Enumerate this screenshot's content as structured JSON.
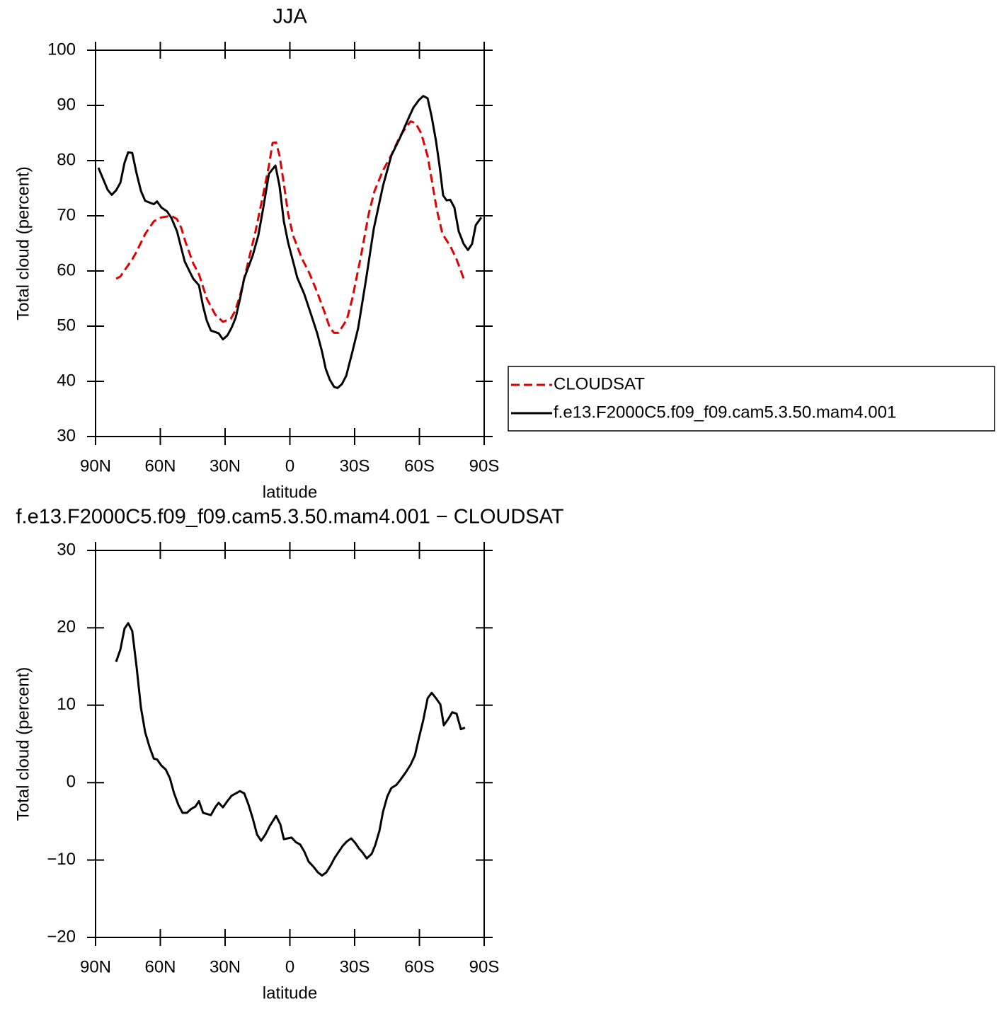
{
  "chart_data": [
    {
      "type": "line",
      "title": "JJA",
      "xlabel": "latitude",
      "ylabel": "Total cloud (percent)",
      "xlim": [
        90,
        -90
      ],
      "ylim": [
        30,
        100
      ],
      "xticks": [
        {
          "value": 90,
          "label": "90N"
        },
        {
          "value": 60,
          "label": "60N"
        },
        {
          "value": 30,
          "label": "30N"
        },
        0,
        {
          "value": -30,
          "label": "30S"
        },
        {
          "value": -60,
          "label": "60S"
        },
        {
          "value": -90,
          "label": "90S"
        }
      ],
      "yticks": [
        30,
        40,
        50,
        60,
        70,
        80,
        90,
        100
      ],
      "legend": "right",
      "series": [
        {
          "name": "CLOUDSAT",
          "color": "#e00000",
          "dash": "dashed",
          "x": [
            80.5,
            78.5,
            76.6,
            73,
            71,
            67,
            63,
            59.5,
            54.9,
            52.3,
            50.3,
            48.4,
            44.8,
            42.1,
            38.5,
            34.6,
            31,
            27.4,
            25.4,
            23.1,
            19.5,
            15.9,
            12.3,
            9.7,
            8.0,
            6.4,
            4.8,
            2.8,
            0.8,
            -1.5,
            -5.4,
            -9,
            -12.6,
            -16.2,
            -18.5,
            -20.5,
            -22.5,
            -26.4,
            -29,
            -33,
            -36.6,
            -39.2,
            -43.1,
            -47,
            -51,
            -53.6,
            -55.9,
            -58.2,
            -60.8,
            -63.8,
            -65.7,
            -68.0,
            -70.7,
            -74.3,
            -77.2,
            -79.2,
            -80.8
          ],
          "values": [
            58.6,
            59.0,
            60.1,
            62.1,
            63.5,
            66.7,
            69.0,
            69.7,
            70.0,
            69.4,
            67.8,
            65.3,
            61.4,
            59.4,
            55.0,
            52.1,
            50.8,
            51.3,
            52.7,
            55.5,
            61.3,
            67.2,
            74.0,
            79.1,
            83.2,
            83.3,
            80.9,
            75.8,
            70.3,
            66.4,
            62.4,
            59.6,
            56.2,
            52.4,
            49.7,
            48.8,
            48.8,
            51.2,
            55.1,
            62.9,
            70.5,
            74.5,
            78.2,
            81.0,
            84.4,
            85.9,
            87.1,
            86.8,
            85.0,
            80.8,
            76.5,
            71.2,
            66.7,
            64.5,
            62.1,
            60.0,
            58.3
          ]
        },
        {
          "name": "f.e13.F2000C5.f09_f09.cam5.3.50.mam4.001",
          "color": "#000000",
          "dash": "solid",
          "x": [
            88.7,
            84.4,
            82.5,
            80.5,
            78.5,
            76.6,
            74.9,
            73,
            71,
            69,
            67,
            63,
            61.5,
            59.5,
            56.9,
            54.9,
            52.3,
            48.7,
            44.8,
            42.1,
            40.2,
            38.5,
            36.6,
            33,
            31,
            29,
            27,
            25.1,
            23.1,
            21.1,
            17.2,
            14.6,
            12.3,
            9.7,
            6.7,
            4.8,
            2.8,
            0.8,
            -1.5,
            -3.4,
            -6.7,
            -10,
            -12.6,
            -14.9,
            -16.6,
            -18.5,
            -20.5,
            -22.1,
            -24.1,
            -26.1,
            -29,
            -31.6,
            -35.2,
            -38.9,
            -43.1,
            -47.0,
            -51,
            -55.2,
            -57.2,
            -59.8,
            -61.8,
            -63.8,
            -65.7,
            -67.7,
            -69.3,
            -71,
            -72.6,
            -74.3,
            -76.2,
            -78.2,
            -80.5,
            -82.5,
            -84.4,
            -86.1,
            -88.7
          ],
          "values": [
            78.7,
            74.7,
            73.8,
            74.6,
            76.0,
            79.6,
            81.5,
            81.4,
            77.7,
            74.5,
            72.7,
            72.1,
            72.6,
            71.5,
            70.8,
            69.6,
            67.2,
            61.7,
            58.6,
            57.4,
            53.6,
            51.0,
            49.2,
            48.7,
            47.6,
            48.3,
            49.7,
            51.5,
            54.9,
            58.7,
            62.8,
            66.5,
            71.5,
            77.6,
            79.1,
            75.4,
            69.0,
            65.1,
            61.7,
            58.8,
            55.8,
            51.9,
            48.8,
            45.4,
            42.3,
            40.3,
            39.0,
            38.8,
            39.5,
            41.0,
            45.4,
            49.6,
            58.3,
            67.7,
            75.4,
            80.9,
            84.1,
            87.9,
            89.6,
            91.0,
            91.7,
            91.3,
            87.9,
            83.5,
            79.1,
            73.7,
            72.8,
            72.9,
            71.5,
            67.2,
            64.9,
            63.8,
            64.9,
            68.3,
            69.7
          ]
        }
      ]
    },
    {
      "type": "line",
      "title": "f.e13.F2000C5.f09_f09.cam5.3.50.mam4.001  −  CLOUDSAT",
      "xlabel": "latitude",
      "ylabel": "Total cloud (percent)",
      "xlim": [
        90,
        -90
      ],
      "ylim": [
        -20,
        30
      ],
      "xticks": [
        {
          "value": 90,
          "label": "90N"
        },
        {
          "value": 60,
          "label": "60N"
        },
        {
          "value": 30,
          "label": "30N"
        },
        0,
        {
          "value": -30,
          "label": "30S"
        },
        {
          "value": -60,
          "label": "60S"
        },
        {
          "value": -90,
          "label": "90S"
        }
      ],
      "yticks": [
        {
          "value": -20,
          "label": "−20"
        },
        {
          "value": -10,
          "label": "−10"
        },
        0,
        10,
        20,
        30
      ],
      "series": [
        {
          "color": "#000000",
          "dash": "solid",
          "x": [
            80.5,
            78.5,
            76.6,
            74.9,
            73,
            71,
            69,
            67,
            65,
            63,
            61.5,
            59.5,
            57.5,
            55.6,
            53.6,
            51.6,
            49.7,
            47.7,
            45.7,
            43.8,
            42.1,
            40.2,
            36.6,
            34.6,
            33,
            31,
            29,
            27,
            23.1,
            21.1,
            19.2,
            17.2,
            15.2,
            13.3,
            11.3,
            9.3,
            6.4,
            4.4,
            2.8,
            -0.8,
            -2.8,
            -4.8,
            -6.7,
            -8.7,
            -11,
            -13,
            -14.9,
            -16.9,
            -18.9,
            -20.8,
            -24.4,
            -26.4,
            -28.4,
            -30.3,
            -32,
            -33.6,
            -35.6,
            -37.9,
            -39.5,
            -41.5,
            -43.1,
            -45.1,
            -47,
            -49.3,
            -51.3,
            -53.6,
            -55.9,
            -57.9,
            -59.8,
            -61.8,
            -63.8,
            -65.7,
            -67.7,
            -69.7,
            -71.3,
            -73.3,
            -75.2,
            -77.2,
            -79.2,
            -81.1
          ],
          "values": [
            15.6,
            17.2,
            19.9,
            20.6,
            19.6,
            15.0,
            9.7,
            6.5,
            4.6,
            3.1,
            3.0,
            2.2,
            1.7,
            0.6,
            -1.4,
            -2.9,
            -3.9,
            -3.9,
            -3.4,
            -3.1,
            -2.4,
            -3.9,
            -4.2,
            -3.2,
            -2.6,
            -3.2,
            -2.4,
            -1.7,
            -1.1,
            -1.4,
            -2.8,
            -4.6,
            -6.7,
            -7.5,
            -6.7,
            -5.6,
            -4.3,
            -5.4,
            -7.3,
            -7.1,
            -7.7,
            -8.0,
            -8.9,
            -10.2,
            -10.9,
            -11.6,
            -12.0,
            -11.6,
            -10.7,
            -9.7,
            -8.2,
            -7.6,
            -7.2,
            -7.8,
            -8.5,
            -9.0,
            -9.8,
            -9.2,
            -8.1,
            -6.2,
            -3.8,
            -1.8,
            -0.7,
            -0.3,
            0.4,
            1.3,
            2.3,
            3.5,
            5.8,
            8.1,
            10.9,
            11.6,
            10.9,
            10.1,
            7.4,
            8.2,
            9.1,
            8.9,
            6.9,
            7.1
          ]
        }
      ]
    }
  ]
}
